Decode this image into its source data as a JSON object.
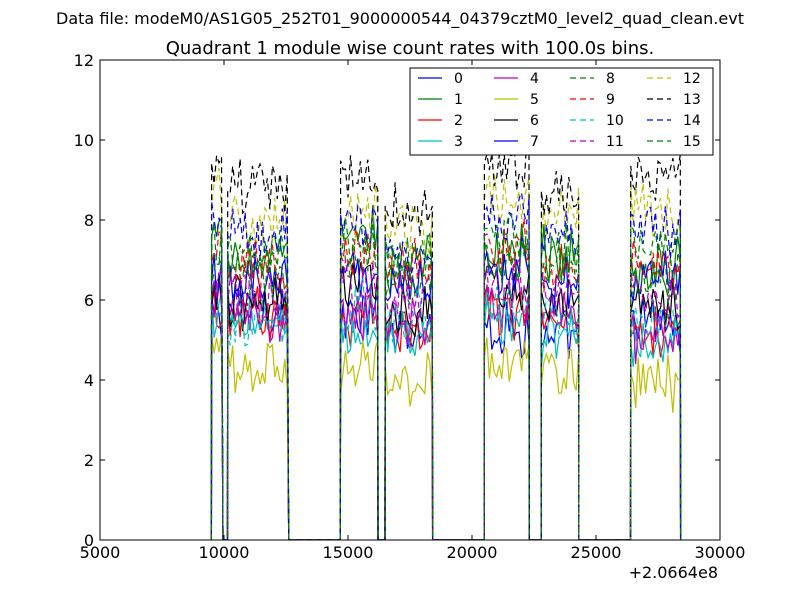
{
  "chart_data": {
    "type": "line",
    "suptitle": "Data file: modeM0/AS1G05_252T01_9000000544_04379cztM0_level2_quad_clean.evt",
    "title": "Quadrant 1 module wise count rates with 100.0s bins.",
    "xlabel": "",
    "ylabel": "",
    "x_offset_label": "+2.0664e8",
    "xlim": [
      5000,
      30000
    ],
    "ylim": [
      0,
      12
    ],
    "x_ticks": [
      5000,
      10000,
      15000,
      20000,
      25000,
      30000
    ],
    "y_ticks": [
      0,
      2,
      4,
      6,
      8,
      10,
      12
    ],
    "x_tick_labels": [
      "5000",
      "10000",
      "15000",
      "20000",
      "25000",
      "30000"
    ],
    "y_tick_labels": [
      "0",
      "2",
      "4",
      "6",
      "8",
      "10",
      "12"
    ],
    "grid": false,
    "legend_position": "top-right",
    "legend_columns": 4,
    "bin_width": 100,
    "segments": [
      [
        9500,
        9950
      ],
      [
        10150,
        12600
      ],
      [
        14700,
        16200
      ],
      [
        16500,
        18400
      ],
      [
        20500,
        22300
      ],
      [
        22800,
        24300
      ],
      [
        26400,
        28400
      ]
    ],
    "series": [
      {
        "name": "0",
        "color": "#0000ff",
        "dash": "solid",
        "levels": [
          5.6,
          5.8,
          5.5,
          5.4,
          5.3,
          5.0,
          5.4
        ]
      },
      {
        "name": "1",
        "color": "#008000",
        "dash": "solid",
        "levels": [
          7.5,
          7.0,
          7.6,
          6.9,
          7.2,
          7.2,
          6.8
        ]
      },
      {
        "name": "2",
        "color": "#ff0000",
        "dash": "solid",
        "levels": [
          5.5,
          5.6,
          5.6,
          5.4,
          5.8,
          5.5,
          5.3
        ]
      },
      {
        "name": "3",
        "color": "#00bfbf",
        "dash": "solid",
        "levels": [
          5.7,
          5.4,
          5.3,
          5.1,
          5.5,
          5.1,
          5.0
        ]
      },
      {
        "name": "4",
        "color": "#bf00bf",
        "dash": "solid",
        "levels": [
          5.9,
          5.6,
          5.7,
          5.5,
          5.9,
          5.6,
          5.2
        ]
      },
      {
        "name": "5",
        "color": "#bfbf00",
        "dash": "solid",
        "levels": [
          4.7,
          4.3,
          4.3,
          4.0,
          4.6,
          4.2,
          4.0
        ]
      },
      {
        "name": "6",
        "color": "#000000",
        "dash": "solid",
        "levels": [
          6.2,
          5.9,
          6.3,
          5.8,
          6.4,
          6.0,
          6.0
        ]
      },
      {
        "name": "7",
        "color": "#0000ff",
        "dash": "solid",
        "levels": [
          6.6,
          6.3,
          6.6,
          6.3,
          6.8,
          6.4,
          6.5
        ]
      },
      {
        "name": "8",
        "color": "#008000",
        "dash": "dashed",
        "levels": [
          6.9,
          6.6,
          7.0,
          6.6,
          7.0,
          6.7,
          6.6
        ]
      },
      {
        "name": "9",
        "color": "#ff0000",
        "dash": "dashed",
        "levels": [
          7.1,
          6.8,
          7.2,
          6.8,
          7.3,
          6.9,
          6.8
        ]
      },
      {
        "name": "10",
        "color": "#00bfbf",
        "dash": "dashed",
        "levels": [
          5.8,
          5.5,
          5.8,
          5.5,
          5.9,
          5.5,
          5.4
        ]
      },
      {
        "name": "11",
        "color": "#bf00bf",
        "dash": "dashed",
        "levels": [
          6.4,
          6.1,
          6.4,
          6.0,
          6.5,
          6.2,
          6.1
        ]
      },
      {
        "name": "12",
        "color": "#bfbf00",
        "dash": "dashed",
        "levels": [
          8.5,
          8.0,
          8.2,
          7.8,
          8.6,
          8.0,
          8.2
        ]
      },
      {
        "name": "13",
        "color": "#000000",
        "dash": "dashed",
        "levels": [
          9.3,
          8.8,
          9.0,
          8.3,
          9.4,
          8.7,
          9.1
        ]
      },
      {
        "name": "14",
        "color": "#0000ff",
        "dash": "dashed",
        "levels": [
          8.1,
          7.6,
          7.9,
          7.3,
          8.1,
          7.6,
          7.8
        ]
      },
      {
        "name": "15",
        "color": "#008000",
        "dash": "dashed",
        "levels": [
          7.6,
          7.2,
          7.5,
          7.1,
          7.6,
          7.3,
          7.4
        ]
      }
    ]
  }
}
